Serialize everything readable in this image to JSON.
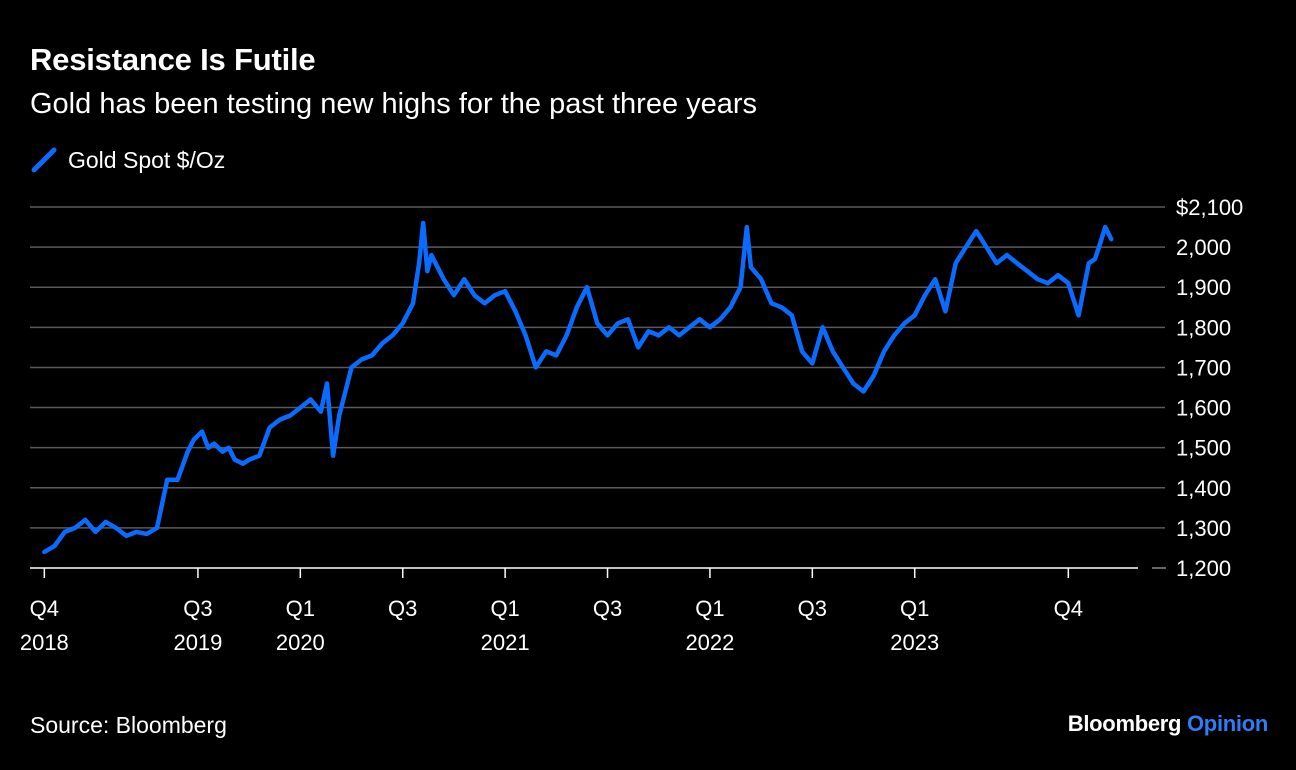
{
  "header": {
    "title": "Resistance Is Futile",
    "subtitle": "Gold has been testing new highs for the past three years"
  },
  "footer": {
    "source": "Source: Bloomberg",
    "brand_name": "Bloomberg",
    "brand_product": "Opinion"
  },
  "colors": {
    "line": "#0a6cff",
    "grid": "#5a5a5a",
    "background": "#000000",
    "accent": "#2e7cf6"
  },
  "chart_data": {
    "type": "line",
    "title": "Resistance Is Futile",
    "subtitle": "Gold has been testing new highs for the past three years",
    "series": [
      {
        "name": "Gold Spot $/Oz",
        "x": [
          2018.75,
          2018.8,
          2018.85,
          2018.9,
          2018.95,
          2019.0,
          2019.05,
          2019.1,
          2019.15,
          2019.2,
          2019.25,
          2019.3,
          2019.35,
          2019.4,
          2019.45,
          2019.48,
          2019.52,
          2019.55,
          2019.58,
          2019.62,
          2019.65,
          2019.68,
          2019.72,
          2019.75,
          2019.8,
          2019.85,
          2019.9,
          2019.95,
          2020.0,
          2020.05,
          2020.1,
          2020.13,
          2020.16,
          2020.19,
          2020.22,
          2020.25,
          2020.3,
          2020.35,
          2020.4,
          2020.45,
          2020.5,
          2020.55,
          2020.58,
          2020.6,
          2020.62,
          2020.64,
          2020.66,
          2020.7,
          2020.75,
          2020.8,
          2020.85,
          2020.9,
          2020.95,
          2021.0,
          2021.05,
          2021.1,
          2021.15,
          2021.2,
          2021.25,
          2021.3,
          2021.35,
          2021.4,
          2021.45,
          2021.5,
          2021.55,
          2021.6,
          2021.65,
          2021.7,
          2021.75,
          2021.8,
          2021.85,
          2021.9,
          2021.95,
          2022.0,
          2022.05,
          2022.1,
          2022.15,
          2022.18,
          2022.2,
          2022.25,
          2022.3,
          2022.35,
          2022.4,
          2022.45,
          2022.5,
          2022.55,
          2022.6,
          2022.65,
          2022.7,
          2022.75,
          2022.8,
          2022.85,
          2022.9,
          2022.95,
          2023.0,
          2023.05,
          2023.1,
          2023.15,
          2023.2,
          2023.25,
          2023.3,
          2023.35,
          2023.4,
          2023.45,
          2023.5,
          2023.55,
          2023.6,
          2023.65,
          2023.7,
          2023.75,
          2023.8,
          2023.85,
          2023.88,
          2023.9,
          2023.93,
          2023.96
        ],
        "values": [
          1240,
          1255,
          1290,
          1300,
          1320,
          1290,
          1315,
          1300,
          1280,
          1290,
          1285,
          1300,
          1420,
          1420,
          1490,
          1520,
          1540,
          1500,
          1510,
          1490,
          1500,
          1470,
          1460,
          1470,
          1480,
          1550,
          1570,
          1580,
          1600,
          1620,
          1590,
          1660,
          1480,
          1580,
          1640,
          1700,
          1720,
          1730,
          1760,
          1780,
          1810,
          1860,
          1960,
          2060,
          1940,
          1980,
          1960,
          1920,
          1880,
          1920,
          1880,
          1860,
          1880,
          1890,
          1840,
          1780,
          1700,
          1740,
          1730,
          1780,
          1850,
          1900,
          1810,
          1780,
          1810,
          1820,
          1750,
          1790,
          1780,
          1800,
          1780,
          1800,
          1820,
          1800,
          1820,
          1850,
          1900,
          2050,
          1950,
          1920,
          1860,
          1850,
          1830,
          1740,
          1710,
          1800,
          1740,
          1700,
          1660,
          1640,
          1680,
          1740,
          1780,
          1810,
          1830,
          1880,
          1920,
          1840,
          1960,
          2000,
          2040,
          2000,
          1960,
          1980,
          1960,
          1940,
          1920,
          1910,
          1930,
          1910,
          1830,
          1960,
          1970,
          2000,
          2050,
          2020
        ]
      }
    ],
    "xlabel": "",
    "ylabel": "",
    "xlim": [
      2018.68,
      2024.1
    ],
    "ylim": [
      1200,
      2100
    ],
    "y_ticks": [
      1200,
      1300,
      1400,
      1500,
      1600,
      1700,
      1800,
      1900,
      2000,
      2100
    ],
    "y_tick_labels": [
      "1,200",
      "1,300",
      "1,400",
      "1,500",
      "1,600",
      "1,700",
      "1,800",
      "1,900",
      "2,000",
      "$2,100"
    ],
    "x_ticks": [
      {
        "value": 2018.75,
        "line1": "Q4",
        "line2": "2018"
      },
      {
        "value": 2019.5,
        "line1": "Q3",
        "line2": "2019"
      },
      {
        "value": 2020.0,
        "line1": "Q1",
        "line2": "2020"
      },
      {
        "value": 2020.5,
        "line1": "Q3",
        "line2": ""
      },
      {
        "value": 2021.0,
        "line1": "Q1",
        "line2": "2021"
      },
      {
        "value": 2021.5,
        "line1": "Q3",
        "line2": ""
      },
      {
        "value": 2022.0,
        "line1": "Q1",
        "line2": "2022"
      },
      {
        "value": 2022.5,
        "line1": "Q3",
        "line2": ""
      },
      {
        "value": 2023.0,
        "line1": "Q1",
        "line2": "2023"
      },
      {
        "value": 2023.75,
        "line1": "Q4",
        "line2": ""
      }
    ],
    "grid": true,
    "legend": "top-left"
  }
}
